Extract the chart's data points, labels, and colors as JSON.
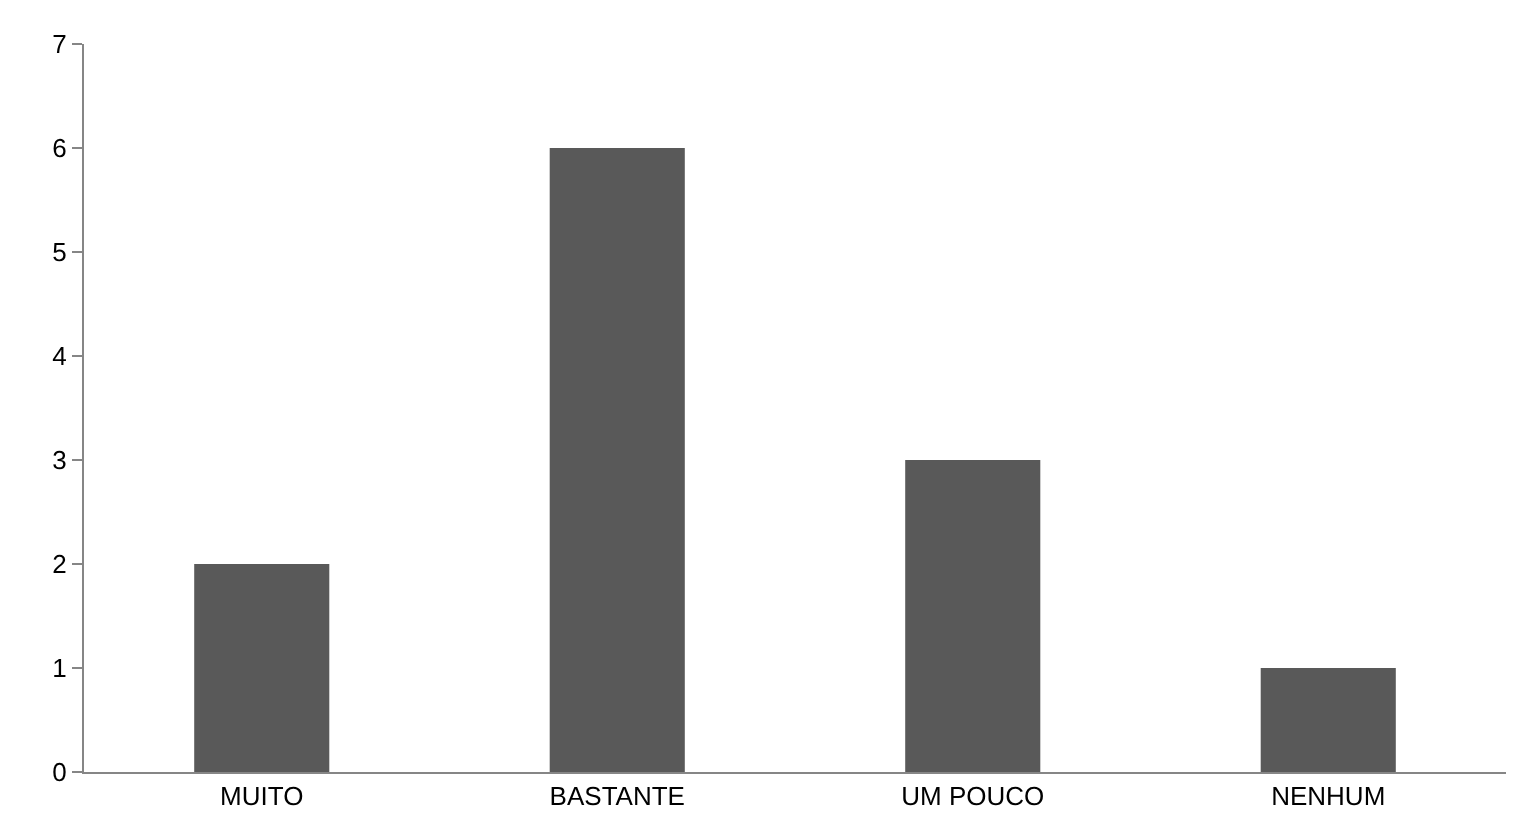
{
  "chart_data": {
    "type": "bar",
    "categories": [
      "MUITO",
      "BASTANTE",
      "UM POUCO",
      "NENHUM"
    ],
    "values": [
      2,
      6,
      3,
      1
    ],
    "color": "#595959",
    "ylim": [
      0,
      7
    ],
    "yticks": [
      0,
      1,
      2,
      3,
      4,
      5,
      6,
      7
    ]
  }
}
